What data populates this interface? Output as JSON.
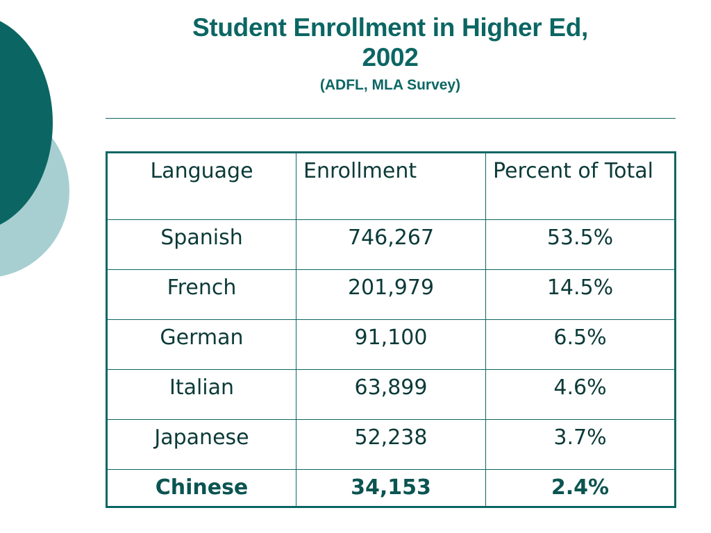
{
  "slide": {
    "title_line1": "Student Enrollment in Higher Ed,",
    "title_line2": "2002",
    "subtitle": "(ADFL, MLA Survey)"
  },
  "colors": {
    "accent": "#0b6663",
    "accent_light": "#a7cfd1"
  },
  "table": {
    "headers": [
      "Language",
      "Enrollment",
      "Percent of Total"
    ],
    "rows": [
      {
        "language": "Spanish",
        "enrollment": "746,267",
        "percent": "53.5%"
      },
      {
        "language": "French",
        "enrollment": "201,979",
        "percent": "14.5%"
      },
      {
        "language": "German",
        "enrollment": "91,100",
        "percent": "6.5%"
      },
      {
        "language": "Italian",
        "enrollment": "63,899",
        "percent": "4.6%"
      },
      {
        "language": "Japanese",
        "enrollment": "52,238",
        "percent": "3.7%"
      },
      {
        "language": "Chinese",
        "enrollment": "34,153",
        "percent": "2.4%"
      }
    ]
  }
}
